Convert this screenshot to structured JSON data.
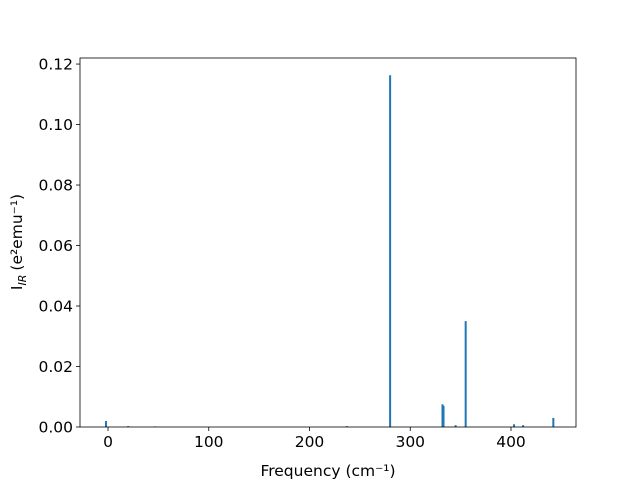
{
  "chart_data": {
    "type": "bar",
    "xlabel": "Frequency (cm⁻¹)",
    "ylabel": {
      "base": "I",
      "subscript": "IR",
      "unit": "(e²emu⁻¹)"
    },
    "x": [
      -2,
      20,
      47,
      237,
      280,
      332,
      333,
      345,
      355,
      403,
      412,
      442
    ],
    "values": [
      0.002,
      0.0003,
      0.0002,
      0.0003,
      0.1163,
      0.0075,
      0.007,
      0.0006,
      0.035,
      0.0009,
      0.0006,
      0.003
    ],
    "bar_width": 2,
    "color": "#1f77b4",
    "xlim": [
      -27.8,
      464.5
    ],
    "ylim": [
      0,
      0.122
    ],
    "xticks": [
      0,
      100,
      200,
      300,
      400
    ],
    "yticks": [
      {
        "value": 0,
        "label": "0.00"
      },
      {
        "value": 0.02,
        "label": "0.02"
      },
      {
        "value": 0.04,
        "label": "0.04"
      },
      {
        "value": 0.06,
        "label": "0.06"
      },
      {
        "value": 0.08,
        "label": "0.08"
      },
      {
        "value": 0.1,
        "label": "0.10"
      },
      {
        "value": 0.12,
        "label": "0.12"
      }
    ]
  }
}
